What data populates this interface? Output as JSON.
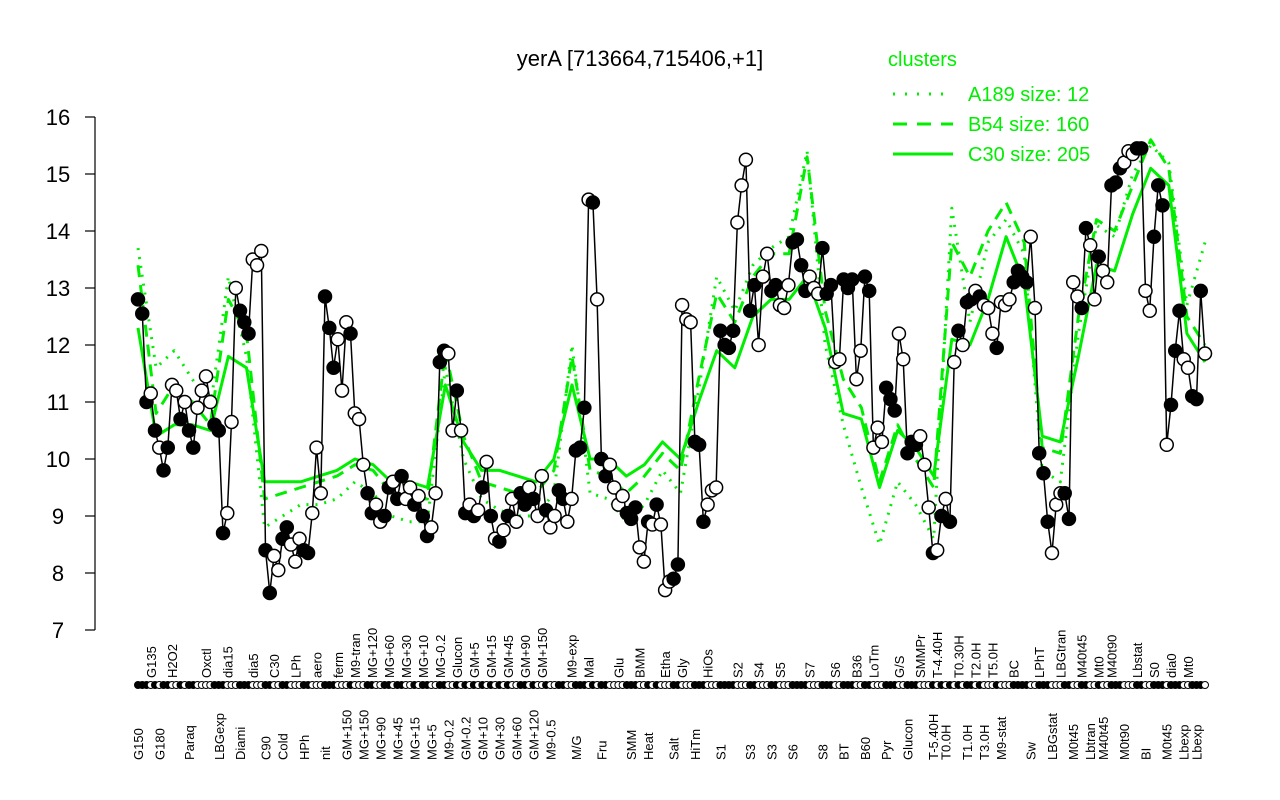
{
  "chart_data": {
    "type": "line",
    "title": "yerA [713664,715406,+1]",
    "ylim": [
      7,
      16
    ],
    "yticks": [
      7,
      8,
      9,
      10,
      11,
      12,
      13,
      14,
      15,
      16
    ],
    "grid": false,
    "legend": {
      "title": "clusters",
      "placement": "top-right",
      "color": "#00ee00",
      "entries": [
        {
          "label": "A189 size: 12",
          "style": "dotted"
        },
        {
          "label": "B54 size: 160",
          "style": "dashed"
        },
        {
          "label": "C30 size: 205",
          "style": "solid"
        }
      ]
    },
    "colors": {
      "series": "#000000",
      "cluster": "#00ee00"
    },
    "points": [
      {
        "v": 12.8,
        "f": 1,
        "l": "G150"
      },
      {
        "v": 12.55,
        "f": 1
      },
      {
        "v": 11.0,
        "f": 1
      },
      {
        "v": 11.15,
        "f": 0,
        "l": "G135"
      },
      {
        "v": 10.5,
        "f": 1
      },
      {
        "v": 10.2,
        "f": 0,
        "l": "G180"
      },
      {
        "v": 9.8,
        "f": 1
      },
      {
        "v": 10.2,
        "f": 1
      },
      {
        "v": 11.3,
        "f": 0,
        "l": "H2O2"
      },
      {
        "v": 11.2,
        "f": 0
      },
      {
        "v": 10.7,
        "f": 1
      },
      {
        "v": 11.0,
        "f": 0
      },
      {
        "v": 10.5,
        "f": 1,
        "l": "Paraq"
      },
      {
        "v": 10.2,
        "f": 1
      },
      {
        "v": 10.9,
        "f": 0
      },
      {
        "v": 11.2,
        "f": 0
      },
      {
        "v": 11.45,
        "f": 0,
        "l": "Oxctl"
      },
      {
        "v": 11.0,
        "f": 0
      },
      {
        "v": 10.6,
        "f": 1
      },
      {
        "v": 10.5,
        "f": 1,
        "l": "LBGexp"
      },
      {
        "v": 8.7,
        "f": 1
      },
      {
        "v": 9.05,
        "f": 0,
        "l": "dia15"
      },
      {
        "v": 10.65,
        "f": 0
      },
      {
        "v": 13.0,
        "f": 0
      },
      {
        "v": 12.6,
        "f": 1,
        "l": "Diami"
      },
      {
        "v": 12.4,
        "f": 1
      },
      {
        "v": 12.2,
        "f": 1
      },
      {
        "v": 13.5,
        "f": 0,
        "l": "dia5"
      },
      {
        "v": 13.4,
        "f": 0
      },
      {
        "v": 13.65,
        "f": 0
      },
      {
        "v": 8.4,
        "f": 1,
        "l": "C90"
      },
      {
        "v": 7.65,
        "f": 1
      },
      {
        "v": 8.3,
        "f": 0,
        "l": "C30"
      },
      {
        "v": 8.05,
        "f": 0
      },
      {
        "v": 8.6,
        "f": 1,
        "l": "Cold"
      },
      {
        "v": 8.8,
        "f": 1
      },
      {
        "v": 8.5,
        "f": 0
      },
      {
        "v": 8.2,
        "f": 0,
        "l": "LPh"
      },
      {
        "v": 8.6,
        "f": 0
      },
      {
        "v": 8.4,
        "f": 1,
        "l": "HPh"
      },
      {
        "v": 8.35,
        "f": 1
      },
      {
        "v": 9.05,
        "f": 0
      },
      {
        "v": 10.2,
        "f": 0,
        "l": "aero"
      },
      {
        "v": 9.4,
        "f": 0
      },
      {
        "v": 12.85,
        "f": 1,
        "l": "nit"
      },
      {
        "v": 12.3,
        "f": 1
      },
      {
        "v": 11.6,
        "f": 1
      },
      {
        "v": 12.1,
        "f": 0,
        "l": "ferm"
      },
      {
        "v": 11.2,
        "f": 0
      },
      {
        "v": 12.4,
        "f": 0,
        "l": "GM+150"
      },
      {
        "v": 12.2,
        "f": 1
      },
      {
        "v": 10.8,
        "f": 0,
        "l": "M9-tran"
      },
      {
        "v": 10.7,
        "f": 0
      },
      {
        "v": 9.9,
        "f": 0,
        "l": "MG+150"
      },
      {
        "v": 9.4,
        "f": 1
      },
      {
        "v": 9.05,
        "f": 1,
        "l": "MG+120"
      },
      {
        "v": 9.2,
        "f": 0
      },
      {
        "v": 8.9,
        "f": 0,
        "l": "MG+90"
      },
      {
        "v": 9.0,
        "f": 1
      },
      {
        "v": 9.5,
        "f": 1,
        "l": "MG+60"
      },
      {
        "v": 9.6,
        "f": 0
      },
      {
        "v": 9.3,
        "f": 1,
        "l": "MG+45"
      },
      {
        "v": 9.7,
        "f": 1
      },
      {
        "v": 9.3,
        "f": 0,
        "l": "MG+30"
      },
      {
        "v": 9.5,
        "f": 0
      },
      {
        "v": 9.2,
        "f": 1,
        "l": "MG+15"
      },
      {
        "v": 9.35,
        "f": 0
      },
      {
        "v": 9.0,
        "f": 1,
        "l": "MG+10"
      },
      {
        "v": 8.65,
        "f": 1
      },
      {
        "v": 8.8,
        "f": 0,
        "l": "MG+5"
      },
      {
        "v": 9.4,
        "f": 0
      },
      {
        "v": 11.7,
        "f": 1,
        "l": "MG-0.2"
      },
      {
        "v": 11.9,
        "f": 1
      },
      {
        "v": 11.85,
        "f": 0,
        "l": "M9-0.2"
      },
      {
        "v": 10.5,
        "f": 0
      },
      {
        "v": 11.2,
        "f": 1,
        "l": "Glucon"
      },
      {
        "v": 10.5,
        "f": 0
      },
      {
        "v": 9.05,
        "f": 1,
        "l": "GM-0.2"
      },
      {
        "v": 9.2,
        "f": 0
      },
      {
        "v": 9.0,
        "f": 1,
        "l": "GM+5"
      },
      {
        "v": 9.1,
        "f": 0
      },
      {
        "v": 9.5,
        "f": 1,
        "l": "GM+10"
      },
      {
        "v": 9.95,
        "f": 0
      },
      {
        "v": 9.0,
        "f": 1,
        "l": "GM+15"
      },
      {
        "v": 8.6,
        "f": 0
      },
      {
        "v": 8.55,
        "f": 1,
        "l": "GM+30"
      },
      {
        "v": 8.75,
        "f": 0
      },
      {
        "v": 9.0,
        "f": 1,
        "l": "GM+45"
      },
      {
        "v": 9.3,
        "f": 0
      },
      {
        "v": 8.9,
        "f": 0,
        "l": "GM+60"
      },
      {
        "v": 9.4,
        "f": 1
      },
      {
        "v": 9.2,
        "f": 1,
        "l": "GM+90"
      },
      {
        "v": 9.5,
        "f": 0
      },
      {
        "v": 9.3,
        "f": 1,
        "l": "GM+120"
      },
      {
        "v": 9.0,
        "f": 0
      },
      {
        "v": 9.7,
        "f": 0,
        "l": "GM+150"
      },
      {
        "v": 9.1,
        "f": 1
      },
      {
        "v": 8.8,
        "f": 0,
        "l": "M9-0.5"
      },
      {
        "v": 9.0,
        "f": 0
      },
      {
        "v": 9.45,
        "f": 1
      },
      {
        "v": 9.3,
        "f": 1
      },
      {
        "v": 8.9,
        "f": 0
      },
      {
        "v": 9.3,
        "f": 0,
        "l": "M9-exp"
      },
      {
        "v": 10.15,
        "f": 1,
        "l": "M/G"
      },
      {
        "v": 10.2,
        "f": 1
      },
      {
        "v": 10.9,
        "f": 1
      },
      {
        "v": 14.55,
        "f": 0,
        "l": "Mal"
      },
      {
        "v": 14.5,
        "f": 1
      },
      {
        "v": 12.8,
        "f": 0
      },
      {
        "v": 10.0,
        "f": 1,
        "l": "Fru"
      },
      {
        "v": 9.7,
        "f": 1
      },
      {
        "v": 9.9,
        "f": 0
      },
      {
        "v": 9.5,
        "f": 0
      },
      {
        "v": 9.2,
        "f": 0,
        "l": "Glu"
      },
      {
        "v": 9.35,
        "f": 0
      },
      {
        "v": 9.05,
        "f": 1
      },
      {
        "v": 8.95,
        "f": 1,
        "l": "SMM"
      },
      {
        "v": 9.15,
        "f": 1
      },
      {
        "v": 8.45,
        "f": 0,
        "l": "BMM"
      },
      {
        "v": 8.2,
        "f": 0
      },
      {
        "v": 8.9,
        "f": 1,
        "l": "Heat"
      },
      {
        "v": 8.85,
        "f": 0
      },
      {
        "v": 9.2,
        "f": 1
      },
      {
        "v": 8.85,
        "f": 0
      },
      {
        "v": 7.7,
        "f": 0,
        "l": "Etha"
      },
      {
        "v": 7.85,
        "f": 0
      },
      {
        "v": 7.9,
        "f": 1,
        "l": "Salt"
      },
      {
        "v": 8.15,
        "f": 1
      },
      {
        "v": 12.7,
        "f": 0,
        "l": "Gly"
      },
      {
        "v": 12.45,
        "f": 0
      },
      {
        "v": 12.4,
        "f": 0
      },
      {
        "v": 10.3,
        "f": 1,
        "l": "HiTm"
      },
      {
        "v": 10.25,
        "f": 1
      },
      {
        "v": 8.9,
        "f": 1
      },
      {
        "v": 9.2,
        "f": 0,
        "l": "HiOs"
      },
      {
        "v": 9.45,
        "f": 0
      },
      {
        "v": 9.5,
        "f": 0
      },
      {
        "v": 12.25,
        "f": 1,
        "l": "S1"
      },
      {
        "v": 12.0,
        "f": 1
      },
      {
        "v": 11.95,
        "f": 1
      },
      {
        "v": 12.25,
        "f": 1
      },
      {
        "v": 14.15,
        "f": 0,
        "l": "S2"
      },
      {
        "v": 14.8,
        "f": 0
      },
      {
        "v": 15.25,
        "f": 0
      },
      {
        "v": 12.6,
        "f": 1,
        "l": "S3"
      },
      {
        "v": 13.05,
        "f": 1
      },
      {
        "v": 12.0,
        "f": 0,
        "l": "S4"
      },
      {
        "v": 13.2,
        "f": 0
      },
      {
        "v": 13.6,
        "f": 0
      },
      {
        "v": 12.95,
        "f": 1,
        "l": "S3"
      },
      {
        "v": 13.05,
        "f": 1
      },
      {
        "v": 12.7,
        "f": 0,
        "l": "S5"
      },
      {
        "v": 12.65,
        "f": 0
      },
      {
        "v": 13.05,
        "f": 0
      },
      {
        "v": 13.8,
        "f": 1,
        "l": "S6"
      },
      {
        "v": 13.85,
        "f": 1
      },
      {
        "v": 13.4,
        "f": 1
      },
      {
        "v": 12.95,
        "f": 1
      },
      {
        "v": 13.2,
        "f": 0,
        "l": "S7"
      },
      {
        "v": 13.0,
        "f": 0
      },
      {
        "v": 12.9,
        "f": 0
      },
      {
        "v": 13.7,
        "f": 1,
        "l": "S8"
      },
      {
        "v": 12.9,
        "f": 1
      },
      {
        "v": 13.05,
        "f": 1
      },
      {
        "v": 11.7,
        "f": 0,
        "l": "S6"
      },
      {
        "v": 11.75,
        "f": 0
      },
      {
        "v": 13.15,
        "f": 1,
        "l": "BT"
      },
      {
        "v": 13.0,
        "f": 1
      },
      {
        "v": 13.15,
        "f": 1
      },
      {
        "v": 11.4,
        "f": 0,
        "l": "B36"
      },
      {
        "v": 11.9,
        "f": 0
      },
      {
        "v": 13.2,
        "f": 1,
        "l": "B60"
      },
      {
        "v": 12.95,
        "f": 1
      },
      {
        "v": 10.2,
        "f": 0,
        "l": "LoTm"
      },
      {
        "v": 10.55,
        "f": 0
      },
      {
        "v": 10.3,
        "f": 0
      },
      {
        "v": 11.25,
        "f": 1,
        "l": "Pyr"
      },
      {
        "v": 11.05,
        "f": 1
      },
      {
        "v": 10.85,
        "f": 1
      },
      {
        "v": 12.2,
        "f": 0,
        "l": "G/S"
      },
      {
        "v": 11.75,
        "f": 0
      },
      {
        "v": 10.1,
        "f": 1,
        "l": "Glucon"
      },
      {
        "v": 10.3,
        "f": 1
      },
      {
        "v": 10.25,
        "f": 1
      },
      {
        "v": 10.4,
        "f": 0,
        "l": "SMMPr"
      },
      {
        "v": 9.9,
        "f": 0
      },
      {
        "v": 9.15,
        "f": 0
      },
      {
        "v": 8.35,
        "f": 1,
        "l": "T-5.40H"
      },
      {
        "v": 8.4,
        "f": 0,
        "l": "T-4.40H"
      },
      {
        "v": 9.0,
        "f": 1
      },
      {
        "v": 9.3,
        "f": 0,
        "l": "T0.0H"
      },
      {
        "v": 8.9,
        "f": 1
      },
      {
        "v": 11.7,
        "f": 0
      },
      {
        "v": 12.25,
        "f": 1,
        "l": "T0.30H"
      },
      {
        "v": 12.0,
        "f": 0
      },
      {
        "v": 12.75,
        "f": 1,
        "l": "T1.0H"
      },
      {
        "v": 12.8,
        "f": 1
      },
      {
        "v": 12.95,
        "f": 0,
        "l": "T2.0H"
      },
      {
        "v": 12.85,
        "f": 1
      },
      {
        "v": 12.7,
        "f": 0,
        "l": "T3.0H"
      },
      {
        "v": 12.65,
        "f": 0
      },
      {
        "v": 12.2,
        "f": 0,
        "l": "T5.0H"
      },
      {
        "v": 11.95,
        "f": 1
      },
      {
        "v": 12.75,
        "f": 0,
        "l": "M9-stat"
      },
      {
        "v": 12.7,
        "f": 0
      },
      {
        "v": 12.8,
        "f": 0
      },
      {
        "v": 13.1,
        "f": 1,
        "l": "BC"
      },
      {
        "v": 13.3,
        "f": 1
      },
      {
        "v": 13.2,
        "f": 1
      },
      {
        "v": 13.1,
        "f": 1
      },
      {
        "v": 13.9,
        "f": 0,
        "l": "Sw"
      },
      {
        "v": 12.65,
        "f": 0
      },
      {
        "v": 10.1,
        "f": 1,
        "l": "LPhT"
      },
      {
        "v": 9.75,
        "f": 1
      },
      {
        "v": 8.9,
        "f": 1
      },
      {
        "v": 8.35,
        "f": 0,
        "l": "LBGstat"
      },
      {
        "v": 9.2,
        "f": 0
      },
      {
        "v": 9.4,
        "f": 0,
        "l": "LBGtran"
      },
      {
        "v": 9.4,
        "f": 1
      },
      {
        "v": 8.95,
        "f": 1
      },
      {
        "v": 13.1,
        "f": 0,
        "l": "M0t45"
      },
      {
        "v": 12.85,
        "f": 0
      },
      {
        "v": 12.65,
        "f": 1,
        "l": "M40t45"
      },
      {
        "v": 14.05,
        "f": 1
      },
      {
        "v": 13.75,
        "f": 0,
        "l": "Lbtran"
      },
      {
        "v": 12.8,
        "f": 0
      },
      {
        "v": 13.55,
        "f": 1,
        "l": "Mt0"
      },
      {
        "v": 13.3,
        "f": 0,
        "l": "M40t45"
      },
      {
        "v": 13.1,
        "f": 0
      },
      {
        "v": 14.8,
        "f": 1,
        "l": "M40t90"
      },
      {
        "v": 14.85,
        "f": 1
      },
      {
        "v": 15.1,
        "f": 1
      },
      {
        "v": 15.2,
        "f": 0,
        "l": "M0t90"
      },
      {
        "v": 15.4,
        "f": 0
      },
      {
        "v": 15.35,
        "f": 0
      },
      {
        "v": 15.45,
        "f": 1,
        "l": "Lbstat"
      },
      {
        "v": 15.45,
        "f": 1
      },
      {
        "v": 12.95,
        "f": 0,
        "l": "BI"
      },
      {
        "v": 12.6,
        "f": 0
      },
      {
        "v": 13.9,
        "f": 1,
        "l": "S0"
      },
      {
        "v": 14.8,
        "f": 1
      },
      {
        "v": 14.45,
        "f": 1
      },
      {
        "v": 10.25,
        "f": 0,
        "l": "M0t45"
      },
      {
        "v": 10.95,
        "f": 1,
        "l": "dia0"
      },
      {
        "v": 11.9,
        "f": 1
      },
      {
        "v": 12.6,
        "f": 1
      },
      {
        "v": 11.75,
        "f": 0,
        "l": "Lbexp"
      },
      {
        "v": 11.6,
        "f": 0,
        "l": "Mt0"
      },
      {
        "v": 11.1,
        "f": 1
      },
      {
        "v": 11.05,
        "f": 1,
        "l": "Lbexp"
      },
      {
        "v": 12.95,
        "f": 1
      },
      {
        "v": 11.85,
        "f": 0
      }
    ],
    "clusters": {
      "C30": [
        12.3,
        10.4,
        10.6,
        10.6,
        10.5,
        11.8,
        11.6,
        9.6,
        9.6,
        9.6,
        9.7,
        9.8,
        10.0,
        9.9,
        9.6,
        9.6,
        9.5,
        11.3,
        10.3,
        9.8,
        9.8,
        9.7,
        9.6,
        10.0,
        11.3,
        10.0,
        10.0,
        9.7,
        9.9,
        10.3,
        10.0,
        11.0,
        11.9,
        11.6,
        12.5,
        12.8,
        12.8,
        13.2,
        12.3,
        10.8,
        10.7,
        9.5,
        10.5,
        10.2,
        9.7,
        12.1,
        12.0,
        12.8,
        13.9,
        13.1,
        10.4,
        10.3,
        11.8,
        13.4,
        13.3,
        14.3,
        15.1,
        14.8,
        12.2,
        11.7
      ],
      "B54": [
        13.4,
        10.8,
        11.3,
        11.0,
        10.6,
        12.8,
        12.2,
        9.3,
        9.4,
        9.5,
        9.6,
        9.7,
        9.9,
        9.8,
        9.4,
        9.3,
        9.3,
        11.9,
        10.4,
        9.6,
        9.5,
        9.4,
        9.4,
        9.8,
        11.8,
        9.8,
        9.7,
        9.4,
        9.7,
        10.1,
        9.8,
        11.4,
        12.9,
        12.4,
        13.2,
        13.6,
        13.6,
        15.3,
        12.6,
        11.4,
        10.9,
        9.6,
        10.6,
        10.0,
        9.5,
        13.8,
        13.2,
        14.0,
        14.5,
        13.8,
        10.2,
        10.1,
        12.5,
        14.2,
        14.0,
        14.8,
        15.6,
        15.1,
        12.5,
        12.0
      ],
      "A189": [
        13.7,
        11.6,
        11.9,
        11.4,
        10.9,
        13.2,
        11.8,
        8.8,
        9.0,
        9.2,
        9.2,
        9.3,
        9.6,
        9.4,
        9.0,
        8.9,
        8.9,
        11.6,
        10.0,
        9.3,
        9.1,
        9.0,
        9.0,
        9.4,
        12.0,
        9.4,
        9.3,
        8.9,
        9.2,
        9.8,
        9.4,
        11.2,
        13.2,
        12.6,
        13.4,
        13.7,
        13.9,
        15.4,
        12.0,
        10.6,
        9.5,
        8.5,
        9.6,
        9.2,
        8.6,
        14.4,
        12.4,
        13.8,
        14.2,
        13.6,
        9.8,
        9.6,
        12.2,
        14.1,
        13.9,
        15.0,
        15.5,
        15.2,
        12.7,
        13.8
      ]
    }
  }
}
